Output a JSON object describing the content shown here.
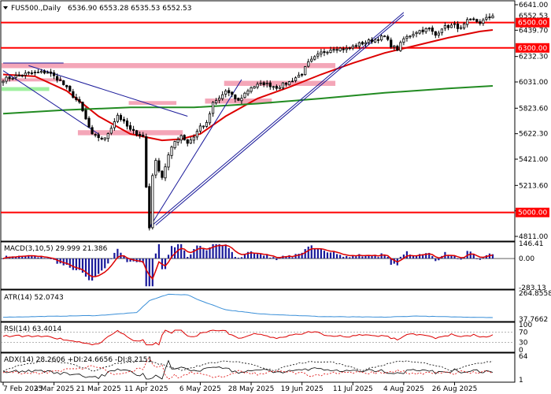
{
  "symbol_label": "FUS500.,Daily",
  "ohlc_label": "6536.90 6553.28 6535.53 6552.53",
  "colors": {
    "up": "#000000",
    "down": "#000000",
    "level": "#ff0000",
    "level_box": "#ff0000",
    "zone": "#f4a6b8",
    "zone_green": "#9ef09e",
    "ma_red": "#dd0000",
    "ma_green": "#228b22",
    "trend": "#1a1a9a",
    "macd_hist": "#1a1a9a",
    "macd_signal": "#dd0000",
    "atr": "#3a8fd8",
    "rsi": "#dd0000",
    "adx": "#000000",
    "pdi": "#000000",
    "mdi": "#dd0000"
  },
  "main_axis": {
    "ticks": [
      "6641.00",
      "6439.70",
      "6232.30",
      "6031.00",
      "5823.60",
      "5622.30",
      "5421.00",
      "5213.60",
      "5013.60",
      "4811.00"
    ],
    "current_price": "6552.53"
  },
  "levels": [
    {
      "value": 6500,
      "label": "6500.00"
    },
    {
      "value": 6300,
      "label": "6300.00"
    },
    {
      "value": 5000,
      "label": "5000.00"
    }
  ],
  "x_axis": {
    "labels": [
      "7 Feb 2025",
      "3 Mar 2025",
      "21 Mar 2025",
      "11 Apr 2025",
      "6 May 2025",
      "28 May 2025",
      "19 Jun 2025",
      "11 Jul 2025",
      "4 Aug 2025",
      "26 Aug 2025"
    ]
  },
  "macd": {
    "label": "MACD(3,10,5) 29.999 21.386",
    "ticks": [
      "146.41",
      "0.00",
      "-283.13"
    ]
  },
  "atr": {
    "label": "ATR(14) 52.0743",
    "ticks": [
      "264.8558",
      "37.7662"
    ]
  },
  "rsi": {
    "label": "RSI(14) 63.4014",
    "ticks": [
      "100",
      "70",
      "30",
      "0"
    ]
  },
  "adx": {
    "label": "ADX(14) 28.2606 +DI:24.6656 -DI:8.2151",
    "ticks": [
      "64",
      "1"
    ]
  },
  "chart_data": {
    "type": "candlestick",
    "symbol": "FUS500.",
    "timeframe": "Daily",
    "ylim": [
      4811,
      6641
    ],
    "x_start": "2025-02-03",
    "x_end": "2025-09-05",
    "close_anchors": [
      [
        0,
        6050
      ],
      [
        8,
        6100
      ],
      [
        14,
        6110
      ],
      [
        18,
        6040
      ],
      [
        24,
        5860
      ],
      [
        28,
        5610
      ],
      [
        32,
        5580
      ],
      [
        36,
        5770
      ],
      [
        40,
        5650
      ],
      [
        44,
        5600
      ],
      [
        45,
        5200
      ],
      [
        46,
        4880
      ],
      [
        47,
        5300
      ],
      [
        48,
        5400
      ],
      [
        50,
        5280
      ],
      [
        52,
        5450
      ],
      [
        54,
        5560
      ],
      [
        56,
        5610
      ],
      [
        58,
        5550
      ],
      [
        60,
        5600
      ],
      [
        62,
        5680
      ],
      [
        64,
        5700
      ],
      [
        66,
        5860
      ],
      [
        68,
        5900
      ],
      [
        70,
        5960
      ],
      [
        72,
        5920
      ],
      [
        74,
        5880
      ],
      [
        76,
        5940
      ],
      [
        78,
        5990
      ],
      [
        82,
        6020
      ],
      [
        86,
        5990
      ],
      [
        90,
        6030
      ],
      [
        94,
        6100
      ],
      [
        96,
        6180
      ],
      [
        100,
        6260
      ],
      [
        104,
        6300
      ],
      [
        108,
        6290
      ],
      [
        112,
        6330
      ],
      [
        116,
        6360
      ],
      [
        120,
        6390
      ],
      [
        122,
        6320
      ],
      [
        124,
        6290
      ],
      [
        126,
        6370
      ],
      [
        130,
        6430
      ],
      [
        134,
        6450
      ],
      [
        136,
        6400
      ],
      [
        138,
        6460
      ],
      [
        142,
        6480
      ],
      [
        144,
        6450
      ],
      [
        146,
        6510
      ],
      [
        148,
        6520
      ],
      [
        150,
        6500
      ],
      [
        152,
        6530
      ],
      [
        154,
        6552
      ]
    ],
    "moving_averages": [
      {
        "name": "MA red",
        "points": [
          [
            0,
            6090
          ],
          [
            10,
            6075
          ],
          [
            20,
            5960
          ],
          [
            30,
            5760
          ],
          [
            40,
            5620
          ],
          [
            50,
            5570
          ],
          [
            56,
            5580
          ],
          [
            62,
            5620
          ],
          [
            70,
            5760
          ],
          [
            80,
            5900
          ],
          [
            90,
            5990
          ],
          [
            100,
            6090
          ],
          [
            110,
            6180
          ],
          [
            120,
            6260
          ],
          [
            130,
            6320
          ],
          [
            140,
            6380
          ],
          [
            150,
            6430
          ],
          [
            154,
            6442
          ]
        ]
      },
      {
        "name": "MA green",
        "points": [
          [
            0,
            5780
          ],
          [
            20,
            5810
          ],
          [
            40,
            5830
          ],
          [
            60,
            5830
          ],
          [
            80,
            5860
          ],
          [
            100,
            5900
          ],
          [
            120,
            5945
          ],
          [
            140,
            5980
          ],
          [
            154,
            6000
          ]
        ]
      }
    ],
    "zones": [
      {
        "from": 0,
        "to": 104,
        "low": 6140,
        "high": 6180
      },
      {
        "from": 0,
        "to": 18,
        "low": 6040,
        "high": 6060
      },
      {
        "from": 0,
        "to": 14,
        "low": 5960,
        "high": 5990,
        "color": "green"
      },
      {
        "from": 24,
        "to": 56,
        "low": 5610,
        "high": 5650
      },
      {
        "from": 70,
        "to": 104,
        "low": 6000,
        "high": 6040
      },
      {
        "from": 64,
        "to": 84,
        "low": 5860,
        "high": 5900
      },
      {
        "from": 40,
        "to": 54,
        "low": 5850,
        "high": 5880
      }
    ],
    "trend_lines": [
      [
        [
          0,
          6180
        ],
        [
          19,
          6180
        ]
      ],
      [
        [
          0,
          6120
        ],
        [
          30,
          5620
        ]
      ],
      [
        [
          8,
          6160
        ],
        [
          58,
          5760
        ]
      ],
      [
        [
          46,
          4880
        ],
        [
          75,
          6050
        ]
      ],
      [
        [
          46,
          4880
        ],
        [
          126,
          6580
        ]
      ],
      [
        [
          48,
          4900
        ],
        [
          126,
          6560
        ]
      ]
    ],
    "indicators": {
      "macd": {
        "ylim": [
          -283.13,
          146.41
        ],
        "value": 29.999,
        "signal": 21.386
      },
      "atr": {
        "ylim": [
          37.7662,
          264.8558
        ],
        "value": 52.0743
      },
      "rsi": {
        "ylim": [
          0,
          100
        ],
        "levels": [
          70,
          30
        ],
        "value": 63.4014
      },
      "adx": {
        "ylim": [
          1,
          64
        ],
        "adx": 28.2606,
        "plus_di": 24.6656,
        "minus_di": 8.2151
      }
    }
  }
}
